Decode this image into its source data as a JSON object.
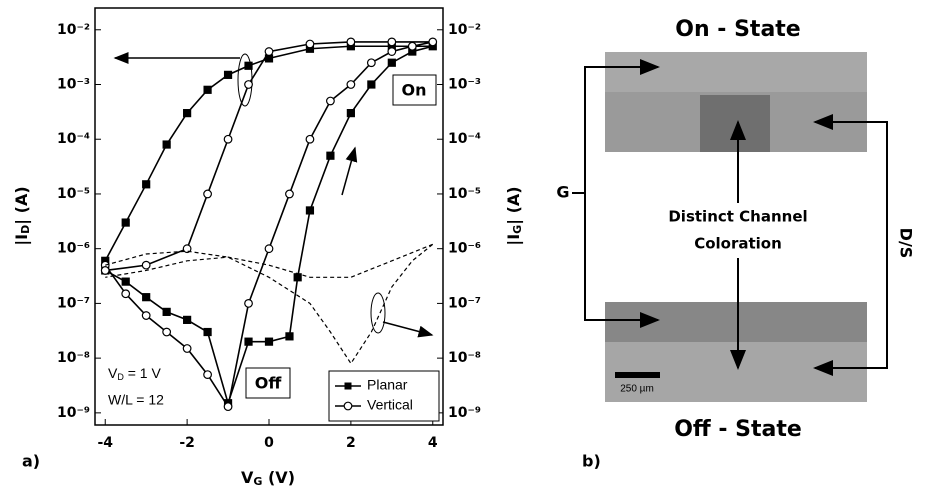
{
  "chart_data": {
    "type": "line",
    "panel_label": "a)",
    "x_label": {
      "text": "V",
      "sub": "G",
      "rest": " (V)"
    },
    "y_label": {
      "text": "|I",
      "sub": "D",
      "rest": "| (A)"
    },
    "y2_label": {
      "text": "|I",
      "sub": "G",
      "rest": "| (A)"
    },
    "log_y": true,
    "xlim": [
      -4.25,
      4.25
    ],
    "xticks": [
      -4,
      -2,
      0,
      2,
      4
    ],
    "ylim": [
      6e-10,
      0.025
    ],
    "yticks": [
      {
        "value": 1e-09,
        "label": "10⁻⁹"
      },
      {
        "value": 1e-08,
        "label": "10⁻⁸"
      },
      {
        "value": 1e-07,
        "label": "10⁻⁷"
      },
      {
        "value": 1e-06,
        "label": "10⁻⁶"
      },
      {
        "value": 1e-05,
        "label": "10⁻⁵"
      },
      {
        "value": 0.0001,
        "label": "10⁻⁴"
      },
      {
        "value": 0.001,
        "label": "10⁻³"
      },
      {
        "value": 0.01,
        "label": "10⁻²"
      }
    ],
    "y2lim": [
      6e-10,
      0.025
    ],
    "y2ticks": [
      {
        "value": 1e-09,
        "label": "10⁻⁹"
      },
      {
        "value": 1e-08,
        "label": "10⁻⁸"
      },
      {
        "value": 1e-07,
        "label": "10⁻⁷"
      },
      {
        "value": 1e-06,
        "label": "10⁻⁶"
      },
      {
        "value": 1e-05,
        "label": "10⁻⁵"
      },
      {
        "value": 0.0001,
        "label": "10⁻⁴"
      },
      {
        "value": 0.001,
        "label": "10⁻³"
      },
      {
        "value": 0.01,
        "label": "10⁻²"
      }
    ],
    "legend": "lower right",
    "annotations": {
      "on": "On",
      "off": "Off",
      "vd": {
        "text": "V",
        "sub": "D",
        "rest": " = 1 V"
      },
      "wl": "W/L = 12"
    },
    "series": [
      {
        "name": "Planar",
        "color": "#000000",
        "marker": "square",
        "x": [
          -4,
          -3.5,
          -3,
          -2.5,
          -2,
          -1.5,
          -1,
          -0.5,
          0,
          0.5,
          0.7,
          1,
          1.5,
          2,
          2.5,
          3,
          3.5,
          4,
          3,
          2,
          1,
          0,
          -0.5,
          -1,
          -1.5,
          -2,
          -2.5,
          -3,
          -3.5,
          -4
        ],
        "values": [
          4e-07,
          2.5e-07,
          1.3e-07,
          7e-08,
          5e-08,
          3e-08,
          1.5e-09,
          2e-08,
          2e-08,
          2.5e-08,
          3e-07,
          5e-06,
          5e-05,
          0.0003,
          0.001,
          0.0025,
          0.004,
          0.005,
          0.005,
          0.005,
          0.0045,
          0.003,
          0.0022,
          0.0015,
          0.0008,
          0.0003,
          8e-05,
          1.5e-05,
          3e-06,
          6e-07
        ]
      },
      {
        "name": "Vertical",
        "color": "#000000",
        "marker": "circle",
        "x": [
          -4,
          -3.5,
          -3,
          -2.5,
          -2,
          -1.5,
          -1,
          -0.5,
          0,
          0.5,
          1,
          1.5,
          2,
          2.5,
          3,
          3.5,
          4,
          3,
          2,
          1,
          0,
          -0.5,
          -1,
          -1.5,
          -2,
          -3,
          -4
        ],
        "values": [
          5e-07,
          1.5e-07,
          6e-08,
          3e-08,
          1.5e-08,
          5e-09,
          1.3e-09,
          1e-07,
          1e-06,
          1e-05,
          0.0001,
          0.0005,
          0.001,
          0.0025,
          0.004,
          0.005,
          0.006,
          0.006,
          0.006,
          0.0055,
          0.004,
          0.001,
          0.0001,
          1e-05,
          1e-06,
          5e-07,
          4e-07
        ]
      },
      {
        "color": "#000000",
        "style": "dashed",
        "axis": "y2",
        "x": [
          -4,
          -3,
          -2,
          -1,
          0,
          1,
          1.5,
          2,
          2.5,
          3,
          3.5,
          4
        ],
        "values": [
          5e-07,
          8e-07,
          9e-07,
          7e-07,
          3e-07,
          1e-07,
          3e-08,
          8e-09,
          3e-08,
          2e-07,
          6e-07,
          1.2e-06
        ]
      },
      {
        "color": "#000000",
        "style": "dashed",
        "axis": "y2",
        "x": [
          4,
          3,
          2,
          1,
          0,
          -1,
          -2,
          -3,
          -4
        ],
        "values": [
          1.2e-06,
          6e-07,
          3e-07,
          3e-07,
          5e-07,
          7e-07,
          6e-07,
          4e-07,
          3e-07
        ]
      }
    ]
  },
  "panel_b": {
    "label": "b)",
    "top_title": "On - State",
    "bottom_title": "Off - State",
    "gate": "G",
    "source_drain": "D/S",
    "caption_line1": "Distinct Channel",
    "caption_line2": "Coloration",
    "scale_bar": "250 µm"
  }
}
